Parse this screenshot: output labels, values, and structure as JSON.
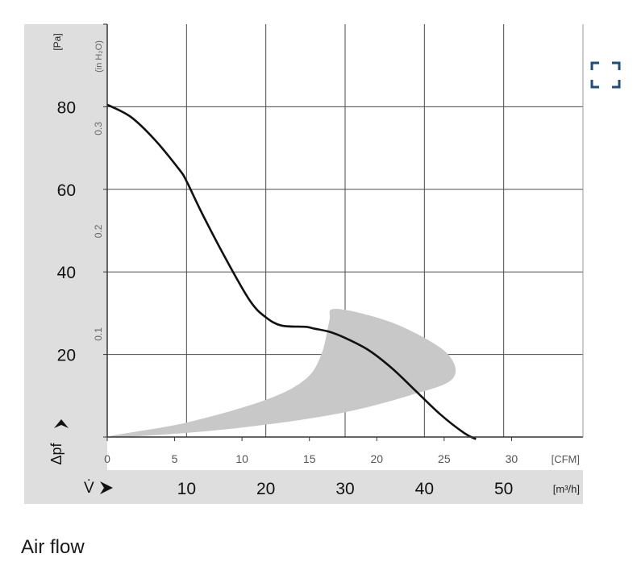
{
  "caption": "Air flow",
  "icons": {
    "expand": "expand-fullscreen-icon"
  },
  "colors": {
    "curve": "#111111",
    "band": "#c8c8c8",
    "axis_bg": "#dedede",
    "grid": "#4a4a4a",
    "icon": "#1f4e79"
  },
  "chart_data": {
    "type": "line",
    "title": "",
    "x_axes": {
      "cfm": {
        "label": "[CFM]",
        "range": [
          0,
          35.3
        ],
        "ticks": [
          0,
          5,
          10,
          15,
          20,
          25,
          30
        ]
      },
      "m3h": {
        "label": "[m³/h]",
        "symbol": "V̇",
        "range": [
          0,
          60
        ],
        "ticks": [
          10,
          20,
          30,
          40,
          50
        ]
      }
    },
    "y_axes": {
      "pa": {
        "label": "[Pa]",
        "symbol": "Δpf",
        "range": [
          0,
          100
        ],
        "ticks": [
          20,
          40,
          60,
          80
        ]
      },
      "inh2o": {
        "label": "(in H₂O)",
        "ticks": [
          0.1,
          0.2,
          0.3
        ]
      }
    },
    "series": [
      {
        "unit_x": "m³/h",
        "unit_y": "Pa",
        "x": [
          0,
          3,
          6,
          9,
          10,
          12,
          15,
          18,
          20,
          22,
          25,
          26,
          28,
          30,
          33,
          36,
          39,
          42,
          45,
          46.5
        ],
        "y": [
          80.5,
          77.5,
          72,
          65,
          62,
          54,
          43,
          33,
          29,
          27,
          26.7,
          26.3,
          25.5,
          24,
          21,
          16.5,
          11,
          5.5,
          1,
          -0.5
        ]
      }
    ],
    "operating_band": {
      "description_free": true,
      "points": [
        [
          0,
          0
        ],
        [
          10,
          3.5
        ],
        [
          20,
          9
        ],
        [
          25,
          14
        ],
        [
          27,
          20
        ],
        [
          28,
          28
        ],
        [
          28.5,
          31
        ],
        [
          33,
          29.5
        ],
        [
          38,
          26
        ],
        [
          43,
          20
        ],
        [
          43.5,
          14
        ],
        [
          38,
          10
        ],
        [
          30,
          6
        ],
        [
          20,
          3
        ],
        [
          10,
          1
        ]
      ]
    },
    "grid": true,
    "legend": "none"
  }
}
